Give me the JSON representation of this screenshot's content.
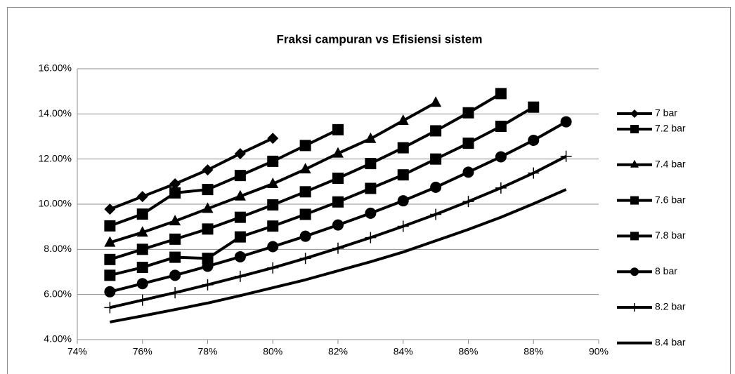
{
  "chart_data": {
    "type": "line",
    "title": "Fraksi campuran vs Efisiensi sistem",
    "x": [
      75,
      76,
      77,
      78,
      79,
      80,
      81,
      82,
      83,
      84,
      85,
      86,
      87,
      88,
      89
    ],
    "series": [
      {
        "name": "7 bar",
        "color": "#000000",
        "marker": "diamond",
        "values": [
          9.78,
          10.34,
          10.9,
          11.52,
          12.24,
          12.92,
          null,
          null,
          null,
          null,
          null,
          null,
          null,
          null,
          null
        ]
      },
      {
        "name": "7.2 bar",
        "color": "#000000",
        "marker": "square",
        "values": [
          9.04,
          9.56,
          10.5,
          10.65,
          11.27,
          11.9,
          12.6,
          13.3,
          null,
          null,
          null,
          null,
          null,
          null,
          null
        ]
      },
      {
        "name": "7.4 bar",
        "color": "#000000",
        "marker": "triangle",
        "values": [
          8.3,
          8.75,
          9.25,
          9.8,
          10.35,
          10.9,
          11.55,
          12.25,
          12.9,
          13.7,
          14.5,
          null,
          null,
          null,
          null
        ]
      },
      {
        "name": "7.6 bar",
        "color": "#000000",
        "marker": "square",
        "values": [
          7.55,
          8.0,
          8.45,
          8.9,
          9.42,
          9.97,
          10.55,
          11.15,
          11.8,
          12.5,
          13.25,
          14.05,
          14.9,
          null,
          null
        ]
      },
      {
        "name": "7.8 bar",
        "color": "#000000",
        "marker": "square",
        "values": [
          6.85,
          7.2,
          7.65,
          7.6,
          8.55,
          9.03,
          9.55,
          10.1,
          10.7,
          11.3,
          12.0,
          12.7,
          13.45,
          14.3,
          null
        ]
      },
      {
        "name": "8 bar",
        "color": "#000000",
        "marker": "circle",
        "values": [
          6.12,
          6.48,
          6.85,
          7.25,
          7.67,
          8.12,
          8.58,
          9.08,
          9.6,
          10.15,
          10.75,
          11.42,
          12.1,
          12.83,
          13.65
        ]
      },
      {
        "name": "8.2 bar",
        "color": "#000000",
        "marker": "plus",
        "values": [
          5.42,
          5.75,
          6.08,
          6.43,
          6.8,
          7.18,
          7.6,
          8.05,
          8.52,
          9.02,
          9.55,
          10.12,
          10.72,
          11.38,
          12.12
        ]
      },
      {
        "name": "8.4 bar",
        "color": "#000000",
        "marker": "none",
        "values": [
          4.78,
          5.05,
          5.33,
          5.62,
          5.95,
          6.3,
          6.65,
          7.05,
          7.45,
          7.88,
          8.38,
          8.88,
          9.42,
          10.02,
          10.65
        ]
      }
    ],
    "xlim": [
      74,
      90
    ],
    "xticks": [
      {
        "value": 74,
        "label": "74%"
      },
      {
        "value": 76,
        "label": "76%"
      },
      {
        "value": 78,
        "label": "78%"
      },
      {
        "value": 80,
        "label": "80%"
      },
      {
        "value": 82,
        "label": "82%"
      },
      {
        "value": 84,
        "label": "84%"
      },
      {
        "value": 86,
        "label": "86%"
      },
      {
        "value": 88,
        "label": "88%"
      },
      {
        "value": 90,
        "label": "90%"
      }
    ],
    "ylim": [
      4,
      16
    ],
    "yticks": [
      {
        "value": 4,
        "label": "4.00%"
      },
      {
        "value": 6,
        "label": "6.00%"
      },
      {
        "value": 8,
        "label": "8.00%"
      },
      {
        "value": 10,
        "label": "10.00%"
      },
      {
        "value": 12,
        "label": "12.00%"
      },
      {
        "value": 14,
        "label": "14.00%"
      },
      {
        "value": 16,
        "label": "16.00%"
      }
    ],
    "grid": true,
    "legend": "right"
  }
}
